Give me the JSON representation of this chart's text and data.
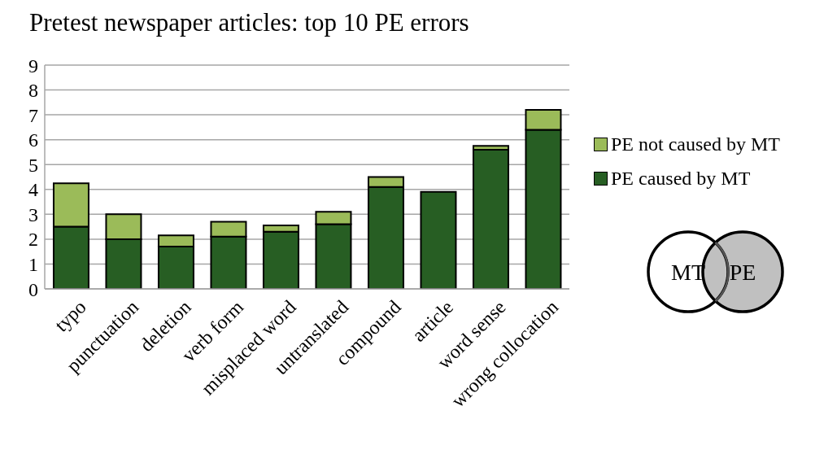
{
  "chart_data": {
    "type": "bar",
    "title": "Pretest newspaper articles: top 10 PE errors",
    "categories": [
      "typo",
      "punctuation",
      "deletion",
      "verb form",
      "misplaced word",
      "untranslated",
      "compound",
      "article",
      "word sense",
      "wrong collocation"
    ],
    "series": [
      {
        "name": "PE caused by MT",
        "color": "#275e23",
        "values": [
          2.5,
          2.0,
          1.7,
          2.1,
          2.3,
          2.6,
          4.1,
          3.9,
          5.6,
          6.4
        ]
      },
      {
        "name": "PE not caused by MT",
        "color": "#9bbb59",
        "values": [
          1.75,
          1.0,
          0.45,
          0.6,
          0.25,
          0.5,
          0.4,
          0,
          0.15,
          0.8
        ]
      }
    ],
    "stacked": true,
    "ylim": [
      0,
      9
    ],
    "yticks": [
      0,
      1,
      2,
      3,
      4,
      5,
      6,
      7,
      8,
      9
    ],
    "grid": "y",
    "legend": "right",
    "annotations": [
      "MT",
      "PE"
    ]
  }
}
